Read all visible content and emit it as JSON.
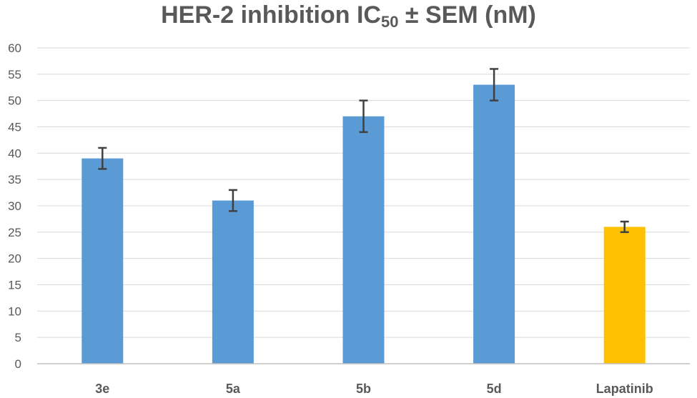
{
  "title": {
    "main": "HER-2 inhibition IC",
    "subscript": "50",
    "suffix": " ± SEM (nM)"
  },
  "chart_data": {
    "type": "bar",
    "title": "HER-2 inhibition IC50 ± SEM (nM)",
    "categories": [
      "3e",
      "5a",
      "5b",
      "5d",
      "Lapatinib"
    ],
    "values": [
      39,
      31,
      47,
      53,
      26
    ],
    "errors": [
      2,
      2,
      3,
      3,
      1
    ],
    "colors": [
      "#5B9BD5",
      "#5B9BD5",
      "#5B9BD5",
      "#5B9BD5",
      "#FFC000"
    ],
    "error_bar_color": "#404040",
    "ylim": [
      0,
      60
    ],
    "yticks": [
      0,
      5,
      10,
      15,
      20,
      25,
      30,
      35,
      40,
      45,
      50,
      55,
      60
    ],
    "grid": true,
    "legend": "none",
    "xlabel": "",
    "ylabel": ""
  }
}
